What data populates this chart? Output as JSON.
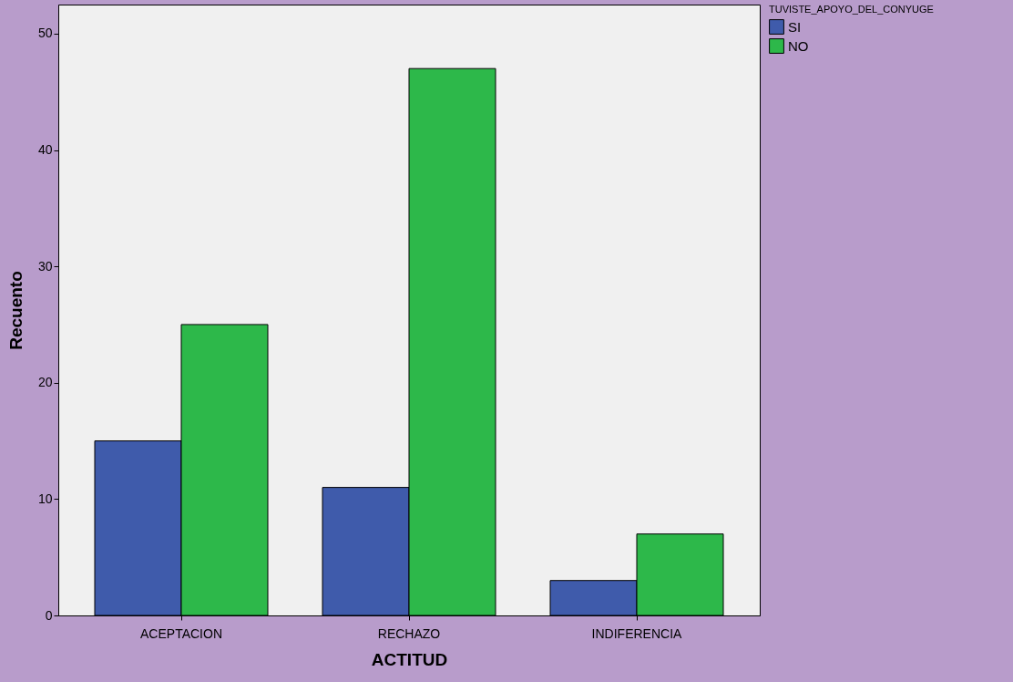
{
  "chart_data": {
    "type": "bar",
    "xlabel": "ACTITUD",
    "ylabel": "Recuento",
    "legend_title": "TUVISTE_APOYO_DEL_CONYUGE",
    "categories": [
      "ACEPTACION",
      "RECHAZO",
      "INDIFERENCIA"
    ],
    "series": [
      {
        "name": "SI",
        "color": "#3f5bab",
        "values": [
          15,
          11,
          3
        ]
      },
      {
        "name": "NO",
        "color": "#2db84a",
        "values": [
          25,
          47,
          7
        ]
      }
    ],
    "ylim": [
      0,
      52.5
    ],
    "yticks": [
      0,
      10,
      20,
      30,
      40,
      50
    ],
    "grid": false,
    "legend": "top right"
  }
}
